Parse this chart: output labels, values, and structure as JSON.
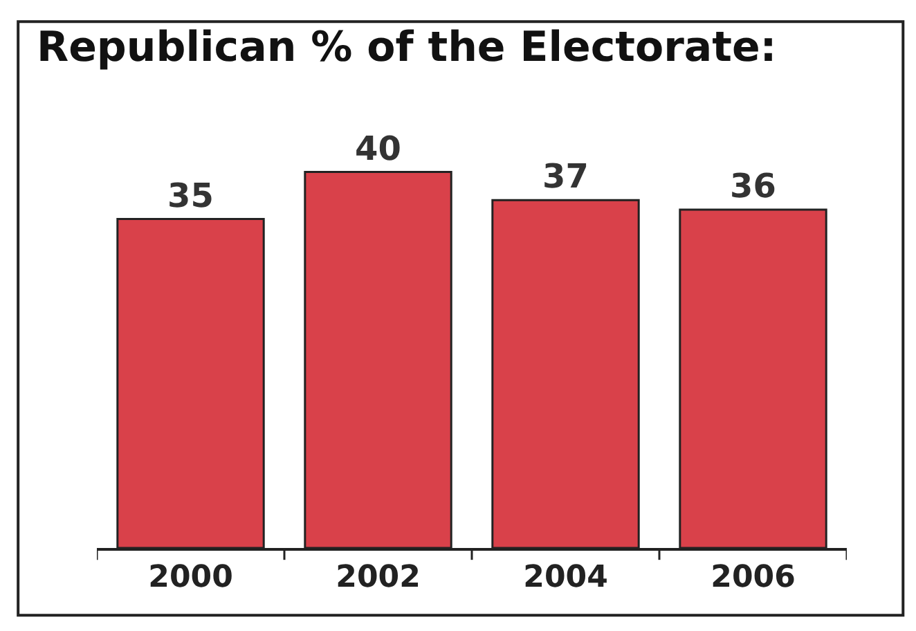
{
  "chart_data": {
    "type": "bar",
    "title": "Republican % of the Electorate:",
    "categories": [
      "2000",
      "2002",
      "2004",
      "2006"
    ],
    "values": [
      35,
      40,
      37,
      36
    ],
    "color": "#d9414a",
    "data_labels": true
  }
}
